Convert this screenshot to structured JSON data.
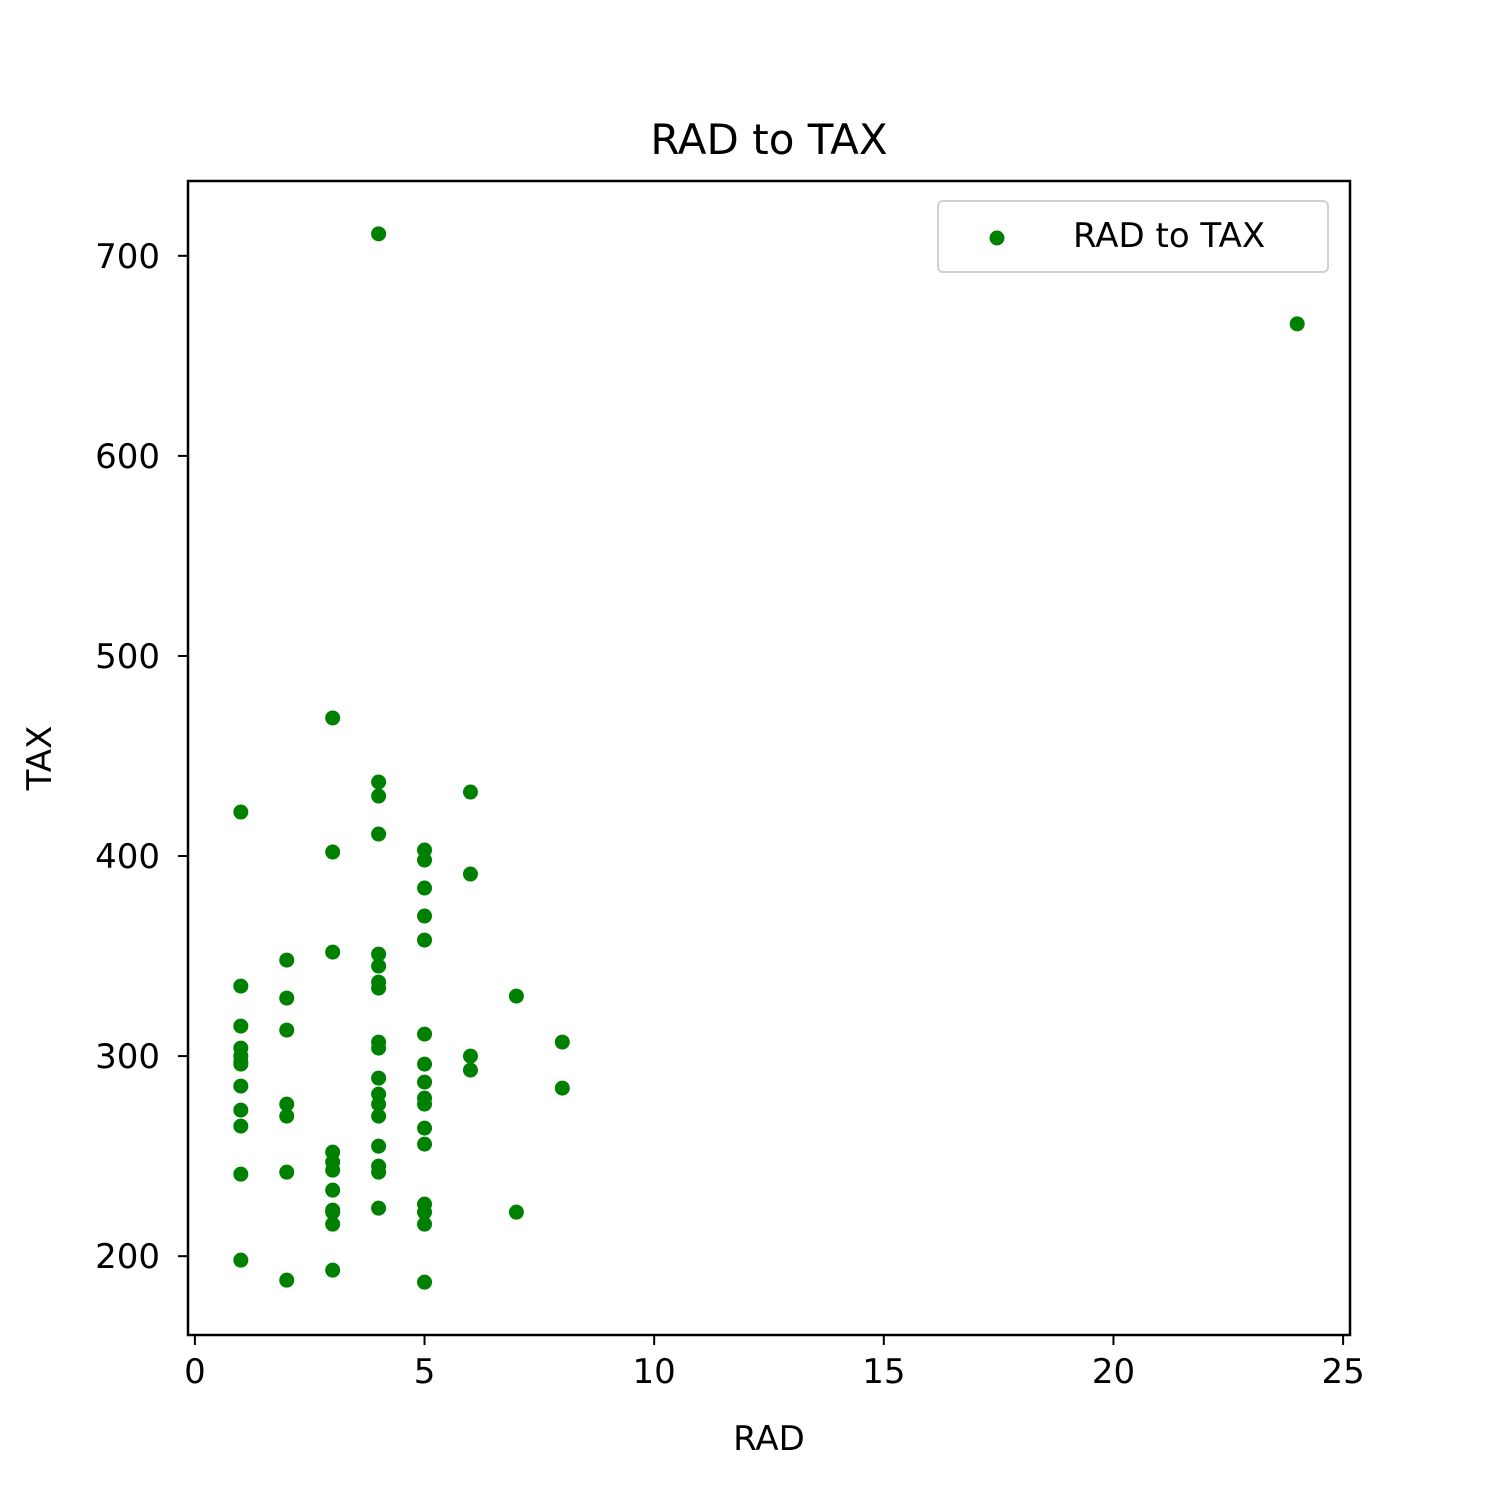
{
  "chart_data": {
    "type": "scatter",
    "title": "RAD to TAX",
    "xlabel": "RAD",
    "ylabel": "TAX",
    "xlim": [
      -0.15,
      25.15
    ],
    "ylim": [
      160.6,
      737.4
    ],
    "xticks": [
      0,
      5,
      10,
      15,
      20,
      25
    ],
    "yticks": [
      200,
      300,
      400,
      500,
      600,
      700
    ],
    "grid": false,
    "legend_position": "top-right",
    "series": [
      {
        "name": "RAD to TAX",
        "color": "#008000",
        "points": [
          [
            1,
            296
          ],
          [
            1,
            273
          ],
          [
            1,
            198
          ],
          [
            1,
            265
          ],
          [
            1,
            241
          ],
          [
            1,
            285
          ],
          [
            1,
            300
          ],
          [
            1,
            304
          ],
          [
            1,
            315
          ],
          [
            1,
            335
          ],
          [
            1,
            422
          ],
          [
            1,
            297
          ],
          [
            2,
            242
          ],
          [
            2,
            188
          ],
          [
            2,
            270
          ],
          [
            2,
            276
          ],
          [
            2,
            313
          ],
          [
            2,
            329
          ],
          [
            2,
            348
          ],
          [
            3,
            222
          ],
          [
            3,
            223
          ],
          [
            3,
            233
          ],
          [
            3,
            243
          ],
          [
            3,
            247
          ],
          [
            3,
            252
          ],
          [
            3,
            216
          ],
          [
            3,
            193
          ],
          [
            3,
            352
          ],
          [
            3,
            402
          ],
          [
            3,
            469
          ],
          [
            4,
            711
          ],
          [
            4,
            437
          ],
          [
            4,
            430
          ],
          [
            4,
            411
          ],
          [
            4,
            351
          ],
          [
            4,
            345
          ],
          [
            4,
            337
          ],
          [
            4,
            334
          ],
          [
            4,
            307
          ],
          [
            4,
            304
          ],
          [
            4,
            289
          ],
          [
            4,
            281
          ],
          [
            4,
            276
          ],
          [
            4,
            270
          ],
          [
            4,
            255
          ],
          [
            4,
            245
          ],
          [
            4,
            242
          ],
          [
            4,
            224
          ],
          [
            5,
            403
          ],
          [
            5,
            398
          ],
          [
            5,
            384
          ],
          [
            5,
            370
          ],
          [
            5,
            358
          ],
          [
            5,
            311
          ],
          [
            5,
            296
          ],
          [
            5,
            287
          ],
          [
            5,
            279
          ],
          [
            5,
            276
          ],
          [
            5,
            264
          ],
          [
            5,
            256
          ],
          [
            5,
            226
          ],
          [
            5,
            222
          ],
          [
            5,
            216
          ],
          [
            5,
            187
          ],
          [
            6,
            432
          ],
          [
            6,
            391
          ],
          [
            6,
            300
          ],
          [
            6,
            293
          ],
          [
            7,
            330
          ],
          [
            7,
            222
          ],
          [
            8,
            307
          ],
          [
            8,
            284
          ],
          [
            24,
            666
          ]
        ]
      }
    ]
  }
}
